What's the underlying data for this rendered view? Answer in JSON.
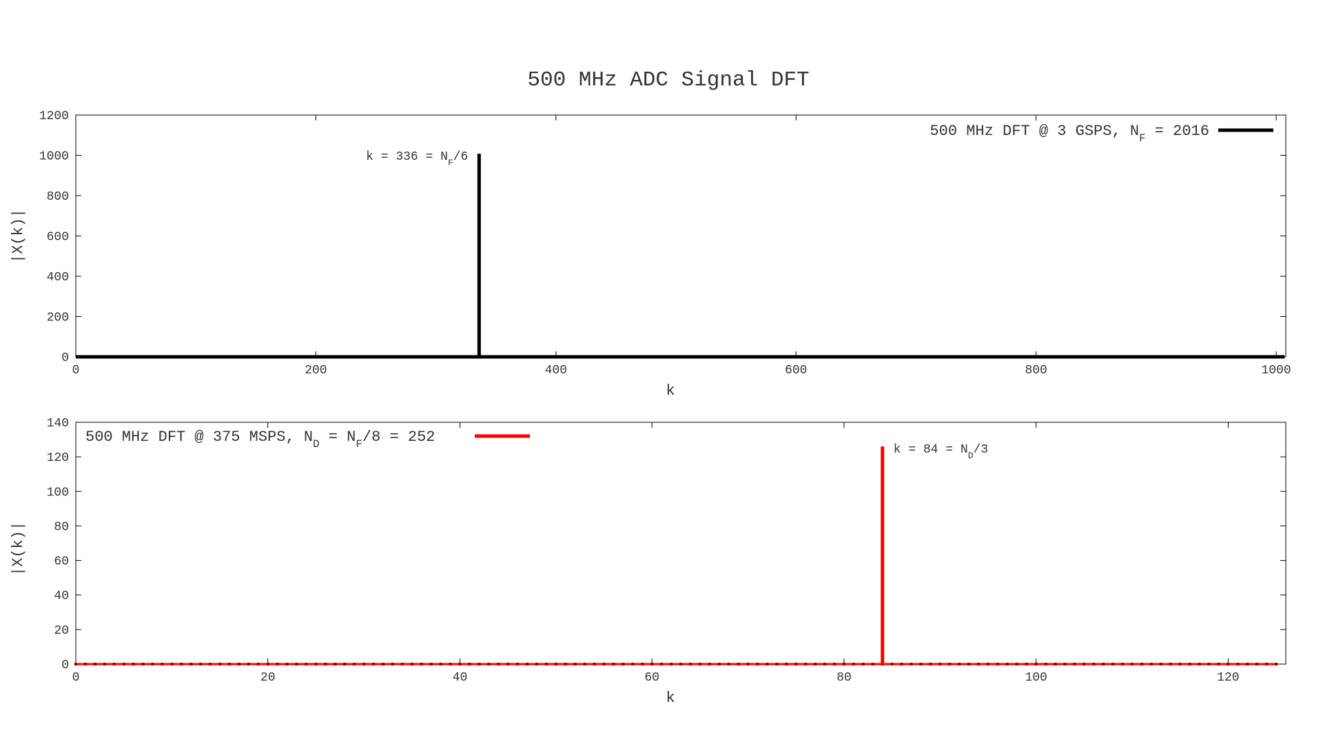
{
  "title": "500 MHz ADC Signal DFT",
  "chart_data": [
    {
      "type": "bar",
      "subtype": "stem",
      "xlabel": "k",
      "ylabel": "|X(k)|",
      "xlim": [
        0,
        1008
      ],
      "ylim": [
        0,
        1200
      ],
      "xticks": [
        0,
        200,
        400,
        600,
        800,
        1000
      ],
      "yticks": [
        0,
        200,
        400,
        600,
        800,
        1000,
        1200
      ],
      "legend_position": "top-right",
      "grid": false,
      "series": [
        {
          "name_parts": [
            "500 MHz DFT @ 3 GSPS, N",
            "F",
            " = 2016"
          ],
          "color": "#000000",
          "baseline": {
            "from": 0,
            "to": 1007,
            "value": 0
          },
          "points": [
            {
              "x": 336,
              "y": 1008
            }
          ],
          "sample_markers": false
        }
      ],
      "annotations": [
        {
          "x": 336,
          "y": 1008,
          "side": "left",
          "parts": [
            "k = 336 = N",
            "F",
            "/6"
          ]
        }
      ]
    },
    {
      "type": "bar",
      "subtype": "stem",
      "xlabel": "k",
      "ylabel": "|X(k)|",
      "xlim": [
        0,
        126
      ],
      "ylim": [
        0,
        140
      ],
      "xticks": [
        0,
        20,
        40,
        60,
        80,
        100,
        120
      ],
      "yticks": [
        0,
        20,
        40,
        60,
        80,
        100,
        120,
        140
      ],
      "legend_position": "top-left",
      "grid": false,
      "series": [
        {
          "name_parts": [
            "500 MHz DFT @ 375 MSPS, N",
            "D",
            " = N",
            "F",
            "/8 = 252"
          ],
          "color": "#ff0000",
          "baseline": {
            "from": 0,
            "to": 125,
            "value": 0
          },
          "points": [
            {
              "x": 84,
              "y": 126
            }
          ],
          "sample_markers": true,
          "sample_range": [
            0,
            125
          ]
        }
      ],
      "annotations": [
        {
          "x": 84,
          "y": 126,
          "side": "right",
          "parts": [
            "k = 84 = N",
            "D",
            "/3"
          ]
        }
      ]
    }
  ]
}
